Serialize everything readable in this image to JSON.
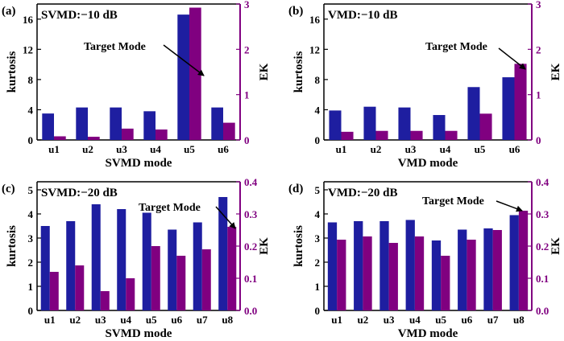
{
  "colors": {
    "kurtosis": "#1e1ea0",
    "ek": "#800080",
    "right_axis": "#800080",
    "left_axis": "#000000"
  },
  "chart_data": [
    {
      "type": "bar",
      "panel_label": "(a)",
      "condition": "SVMD:−10 dB",
      "annotation": "Target Mode",
      "target_index": 4,
      "categories": [
        "u1",
        "u2",
        "u3",
        "u4",
        "u5",
        "u6"
      ],
      "xlabel": "SVMD mode",
      "ylabel": "kurtosis",
      "y2label": "EK",
      "ylim": [
        0,
        18
      ],
      "yticks": [
        0,
        4,
        8,
        12,
        16
      ],
      "y2lim": [
        0,
        3
      ],
      "y2ticks": [
        0,
        1,
        2,
        3
      ],
      "series": [
        {
          "values": [
            3.5,
            4.3,
            4.3,
            3.8,
            16.6,
            4.3
          ],
          "axis": "left",
          "color": "#1e1ea0"
        },
        {
          "values": [
            0.08,
            0.07,
            0.25,
            0.23,
            2.92,
            0.38
          ],
          "axis": "right",
          "color": "#800080"
        }
      ]
    },
    {
      "type": "bar",
      "panel_label": "(b)",
      "condition": "VMD:−10 dB",
      "annotation": "Target Mode",
      "target_index": 5,
      "categories": [
        "u1",
        "u2",
        "u3",
        "u4",
        "u5",
        "u6"
      ],
      "xlabel": "VMD mode",
      "ylabel": "kurtosis",
      "y2label": "EK",
      "ylim": [
        0,
        18
      ],
      "yticks": [
        0,
        4,
        8,
        12,
        16
      ],
      "y2lim": [
        0,
        3
      ],
      "y2ticks": [
        0,
        1,
        2,
        3
      ],
      "series": [
        {
          "values": [
            3.9,
            4.4,
            4.3,
            3.3,
            7.0,
            8.3
          ],
          "axis": "left",
          "color": "#1e1ea0"
        },
        {
          "values": [
            0.18,
            0.2,
            0.2,
            0.2,
            0.58,
            1.68
          ],
          "axis": "right",
          "color": "#800080"
        }
      ]
    },
    {
      "type": "bar",
      "panel_label": "(c)",
      "condition": "SVMD:−20 dB",
      "annotation": "Target Mode",
      "target_index": 7,
      "categories": [
        "u1",
        "u2",
        "u3",
        "u4",
        "u5",
        "u6",
        "u7",
        "u8"
      ],
      "xlabel": "SVMD mode",
      "ylabel": "kurtosis",
      "y2label": "EK",
      "ylim": [
        0,
        5.333
      ],
      "yticks": [
        0,
        1,
        2,
        3,
        4,
        5
      ],
      "y2lim": [
        0,
        0.4
      ],
      "y2ticks": [
        "0.0",
        "0.1",
        "0.2",
        "0.3",
        "0.4"
      ],
      "series": [
        {
          "values": [
            3.5,
            3.7,
            4.4,
            4.2,
            4.05,
            3.35,
            3.65,
            4.7
          ],
          "axis": "left",
          "color": "#1e1ea0"
        },
        {
          "values": [
            0.12,
            0.14,
            0.06,
            0.1,
            0.2,
            0.17,
            0.19,
            0.26
          ],
          "axis": "right",
          "color": "#800080"
        }
      ]
    },
    {
      "type": "bar",
      "panel_label": "(d)",
      "condition": "VMD:−20 dB",
      "annotation": "Target Mode",
      "target_index": 7,
      "categories": [
        "u1",
        "u2",
        "u3",
        "u4",
        "u5",
        "u6",
        "u7",
        "u8"
      ],
      "xlabel": "VMD mode",
      "ylabel": "kurtosis",
      "y2label": "EK",
      "ylim": [
        0,
        5.333
      ],
      "yticks": [
        0,
        1,
        2,
        3,
        4,
        5
      ],
      "y2lim": [
        0,
        0.4
      ],
      "y2ticks": [
        "0.0",
        "0.1",
        "0.2",
        "0.3",
        "0.4"
      ],
      "series": [
        {
          "values": [
            3.65,
            3.7,
            3.7,
            3.75,
            2.9,
            3.35,
            3.4,
            3.95
          ],
          "axis": "left",
          "color": "#1e1ea0"
        },
        {
          "values": [
            0.22,
            0.23,
            0.21,
            0.23,
            0.17,
            0.22,
            0.25,
            0.31
          ],
          "axis": "right",
          "color": "#800080"
        }
      ]
    }
  ]
}
